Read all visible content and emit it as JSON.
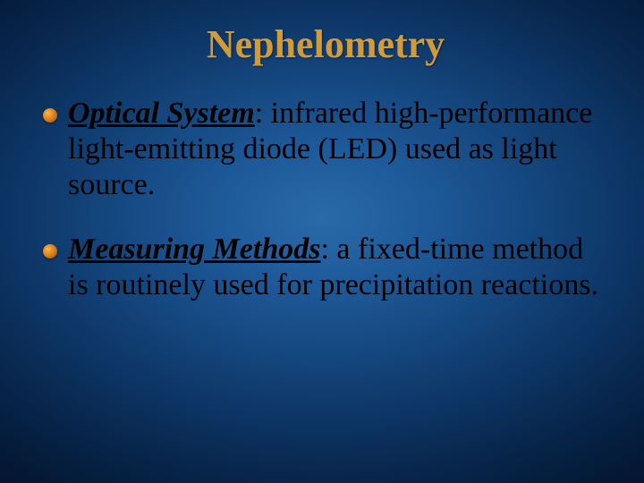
{
  "slide": {
    "title": "Nephelometry",
    "title_color": "#d19a3a",
    "title_fontsize": 44,
    "body_fontsize": 34,
    "body_color": "#000000",
    "bullets": [
      {
        "heading": "Optical System",
        "text": ": infrared high-performance light-emitting diode (LED) used as light source."
      },
      {
        "heading": "Measuring Methods",
        "text": ": a fixed-time method is routinely used for precipitation reactions."
      }
    ],
    "bullet_marker_color_start": "#ffb347",
    "bullet_marker_color_end": "#8a4a0a",
    "background_gradient": {
      "center": "#2a6aa8",
      "edge": "#031530"
    }
  }
}
